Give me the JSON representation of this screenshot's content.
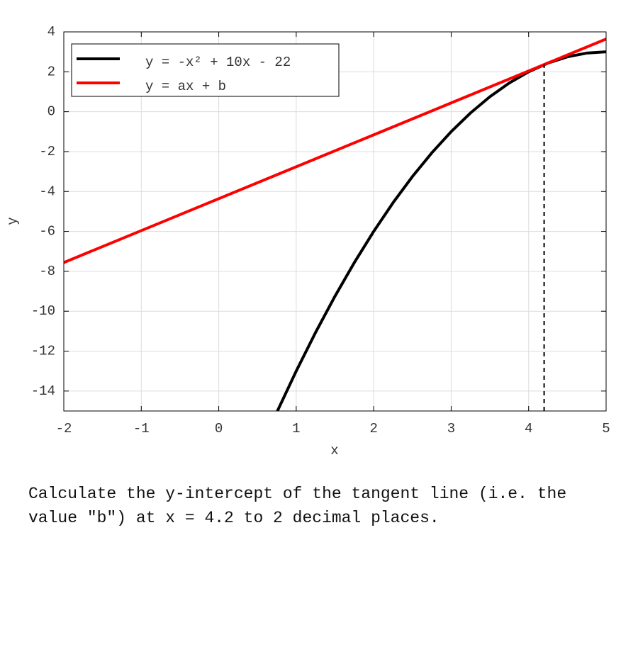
{
  "chart_data": {
    "type": "line",
    "xlabel": "x",
    "ylabel": "y",
    "xlim": [
      -2,
      5
    ],
    "ylim": [
      -15,
      4
    ],
    "xticks": [
      -2,
      -1,
      0,
      1,
      2,
      3,
      4,
      5
    ],
    "yticks": [
      -14,
      -12,
      -10,
      -8,
      -6,
      -4,
      -2,
      0,
      2,
      4
    ],
    "grid": true,
    "legend": "upper left",
    "series": [
      {
        "name": "y = -x² + 10x - 22",
        "color": "#000000",
        "x": [
          0.75,
          1,
          1.25,
          1.5,
          1.75,
          2,
          2.25,
          2.5,
          2.75,
          3,
          3.25,
          3.5,
          3.75,
          4,
          4.25,
          4.5,
          4.75,
          5
        ],
        "values": [
          -15.0625,
          -13,
          -11.0625,
          -9.25,
          -7.5625,
          -6,
          -4.5625,
          -3.25,
          -2.0625,
          -1,
          -0.0625,
          0.75,
          1.4375,
          2,
          2.4375,
          2.75,
          2.9375,
          3
        ]
      },
      {
        "name": "y = ax + b",
        "color": "#ff0000",
        "x": [
          -2,
          5
        ],
        "values": [
          -7.56,
          3.64
        ]
      },
      {
        "color": "#000000",
        "dashed": true,
        "x": [
          4.2,
          4.2
        ],
        "values": [
          -15,
          2.36
        ]
      }
    ]
  },
  "question": "Calculate the y-intercept of the tangent line (i.e. the value \"b\") at x = 4.2 to 2 decimal places."
}
